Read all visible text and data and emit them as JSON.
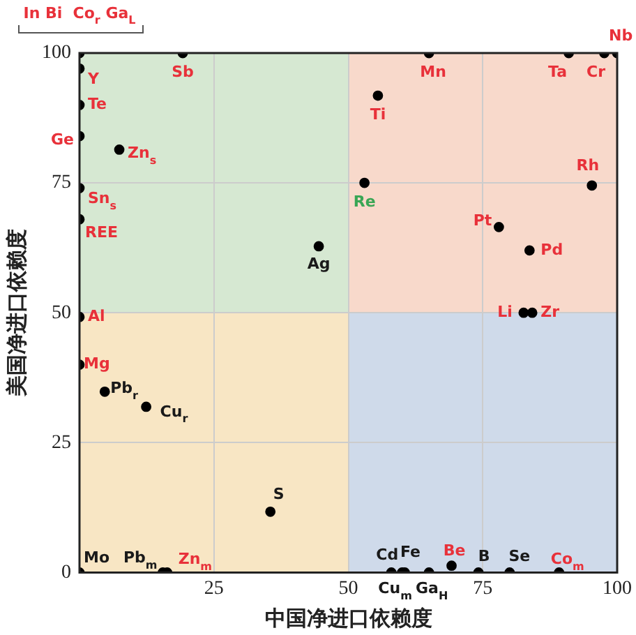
{
  "chart_data": {
    "type": "scatter",
    "xlabel": "中国净进口依赖度",
    "ylabel": "美国净进口依赖度",
    "xlim": [
      0,
      100
    ],
    "ylim": [
      0,
      100
    ],
    "xticks": [
      {
        "value": 0,
        "label": null
      },
      25,
      50,
      75,
      100
    ],
    "yticks": [
      0,
      25,
      50,
      75,
      100
    ],
    "grid": true,
    "legend": false,
    "marker": "circle",
    "series": [
      {
        "color": "#000000",
        "x": [
          19.2,
          0,
          0,
          0,
          7.4,
          0,
          0,
          0,
          65,
          91,
          97.6,
          100,
          55.5,
          95.3,
          78,
          83.7,
          82.6,
          84.2,
          0,
          0,
          16.3,
          69.2,
          89.2
        ],
        "values": [
          100,
          97,
          90,
          84,
          81.4,
          74,
          68,
          100,
          100,
          100,
          100,
          100,
          91.8,
          74.5,
          66.5,
          62,
          50,
          50,
          49.2,
          40,
          0,
          1.3,
          0
        ],
        "value_labels": [
          "Sb",
          "Y",
          "Te",
          "Ge",
          "Zn$_{s}$",
          "Sn$_{s}$",
          "REE",
          "In Bi  Co$_{r}$ Ga$_{L}$",
          "Mn",
          "Ta",
          "Cr",
          "Nb",
          "Ti",
          "Rh",
          "Pt",
          "Pd",
          "Li",
          "Zr",
          "Al",
          "Mg",
          "Zn$_{m}$",
          "Be",
          "Co$_{m}$"
        ]
      },
      {
        "color": "#000000",
        "x": [
          44.5,
          4.7,
          12.4,
          35.5,
          0,
          15.5,
          58,
          60,
          60.5,
          65,
          74.2,
          80
        ],
        "values": [
          62.8,
          34.8,
          31.9,
          11.7,
          0,
          0,
          0,
          0,
          0,
          0,
          0,
          0
        ],
        "value_labels": [
          "Ag",
          "Pb$_{r}$",
          "Cu$_{r}$",
          "S",
          "Mo",
          "Pb$_{m}$",
          "Cd",
          "Cu$_{m}$",
          "Fe",
          "Ga$_{H}$",
          "B",
          "Se"
        ]
      },
      {
        "color": "#000000",
        "x": [
          53
        ],
        "values": [
          75
        ],
        "value_labels": [
          "Re"
        ]
      }
    ]
  }
}
